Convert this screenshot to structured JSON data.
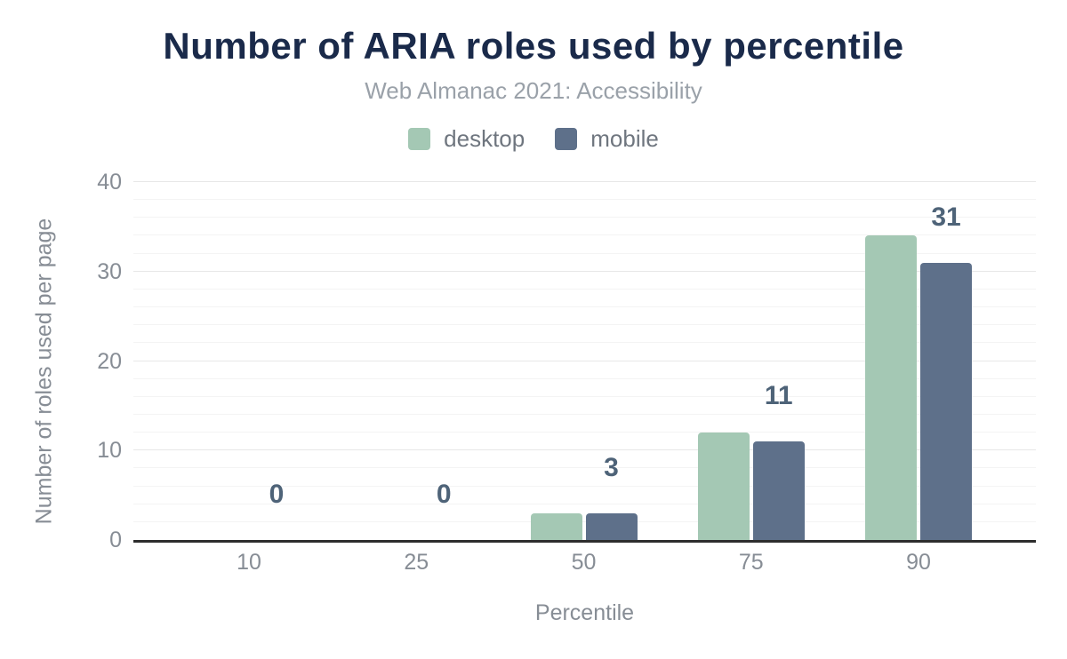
{
  "chart_data": {
    "type": "bar",
    "title": "Number of ARIA roles used by percentile",
    "subtitle": "Web Almanac 2021: Accessibility",
    "xlabel": "Percentile",
    "ylabel": "Number of roles used per page",
    "categories": [
      "10",
      "25",
      "50",
      "75",
      "90"
    ],
    "series": [
      {
        "name": "desktop",
        "color": "#a4c8b4",
        "values": [
          0,
          0,
          3,
          12,
          34
        ]
      },
      {
        "name": "mobile",
        "color": "#5e708a",
        "values": [
          0,
          0,
          3,
          11,
          31
        ]
      }
    ],
    "data_labels": {
      "labeled_series": "mobile",
      "values": [
        "0",
        "0",
        "3",
        "11",
        "31"
      ]
    },
    "ylim": [
      0,
      40
    ],
    "y_ticks": [
      "0",
      "10",
      "20",
      "30",
      "40"
    ],
    "minor_tick_step": 2,
    "major_tick_step": 10,
    "grid": true,
    "legend_position": "top"
  },
  "colors": {
    "title": "#1a2a4a",
    "subtitle": "#9aa1a9",
    "legend_text": "#6f767f",
    "axis_text": "#878d95",
    "data_label": "#4e6378",
    "axis_line": "#2d2d2d",
    "grid_major": "#e7e7e7",
    "grid_minor": "#f4f4f4"
  }
}
